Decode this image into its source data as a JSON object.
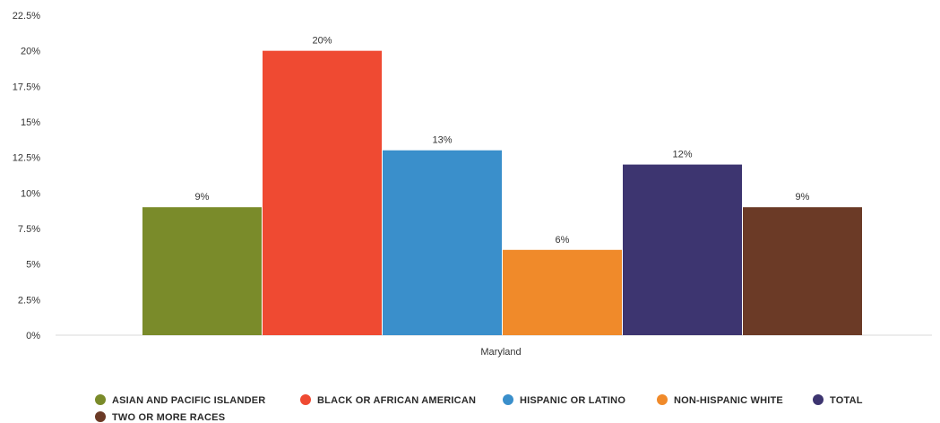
{
  "chart_data": {
    "type": "bar",
    "categories": [
      "Maryland"
    ],
    "ylim": [
      0,
      22.5
    ],
    "yticks": [
      "0%",
      "2.5%",
      "5%",
      "7.5%",
      "10%",
      "12.5%",
      "15%",
      "17.5%",
      "20%",
      "22.5%"
    ],
    "ytick_values": [
      0,
      2.5,
      5,
      7.5,
      10,
      12.5,
      15,
      17.5,
      20,
      22.5
    ],
    "grid": false,
    "legend_position": "bottom",
    "series": [
      {
        "name": "ASIAN AND PACIFIC ISLANDER",
        "values": [
          9
        ],
        "label": "9%",
        "color": "#7a8b2a"
      },
      {
        "name": "BLACK OR AFRICAN AMERICAN",
        "values": [
          20
        ],
        "label": "20%",
        "color": "#ef4a32"
      },
      {
        "name": "HISPANIC OR LATINO",
        "values": [
          13
        ],
        "label": "13%",
        "color": "#3a8fcb"
      },
      {
        "name": "NON-HISPANIC WHITE",
        "values": [
          6
        ],
        "label": "6%",
        "color": "#f08a2a"
      },
      {
        "name": "TOTAL",
        "values": [
          12
        ],
        "label": "12%",
        "color": "#3d3570"
      },
      {
        "name": "TWO OR MORE RACES",
        "values": [
          9
        ],
        "label": "9%",
        "color": "#6b3a26"
      }
    ]
  }
}
